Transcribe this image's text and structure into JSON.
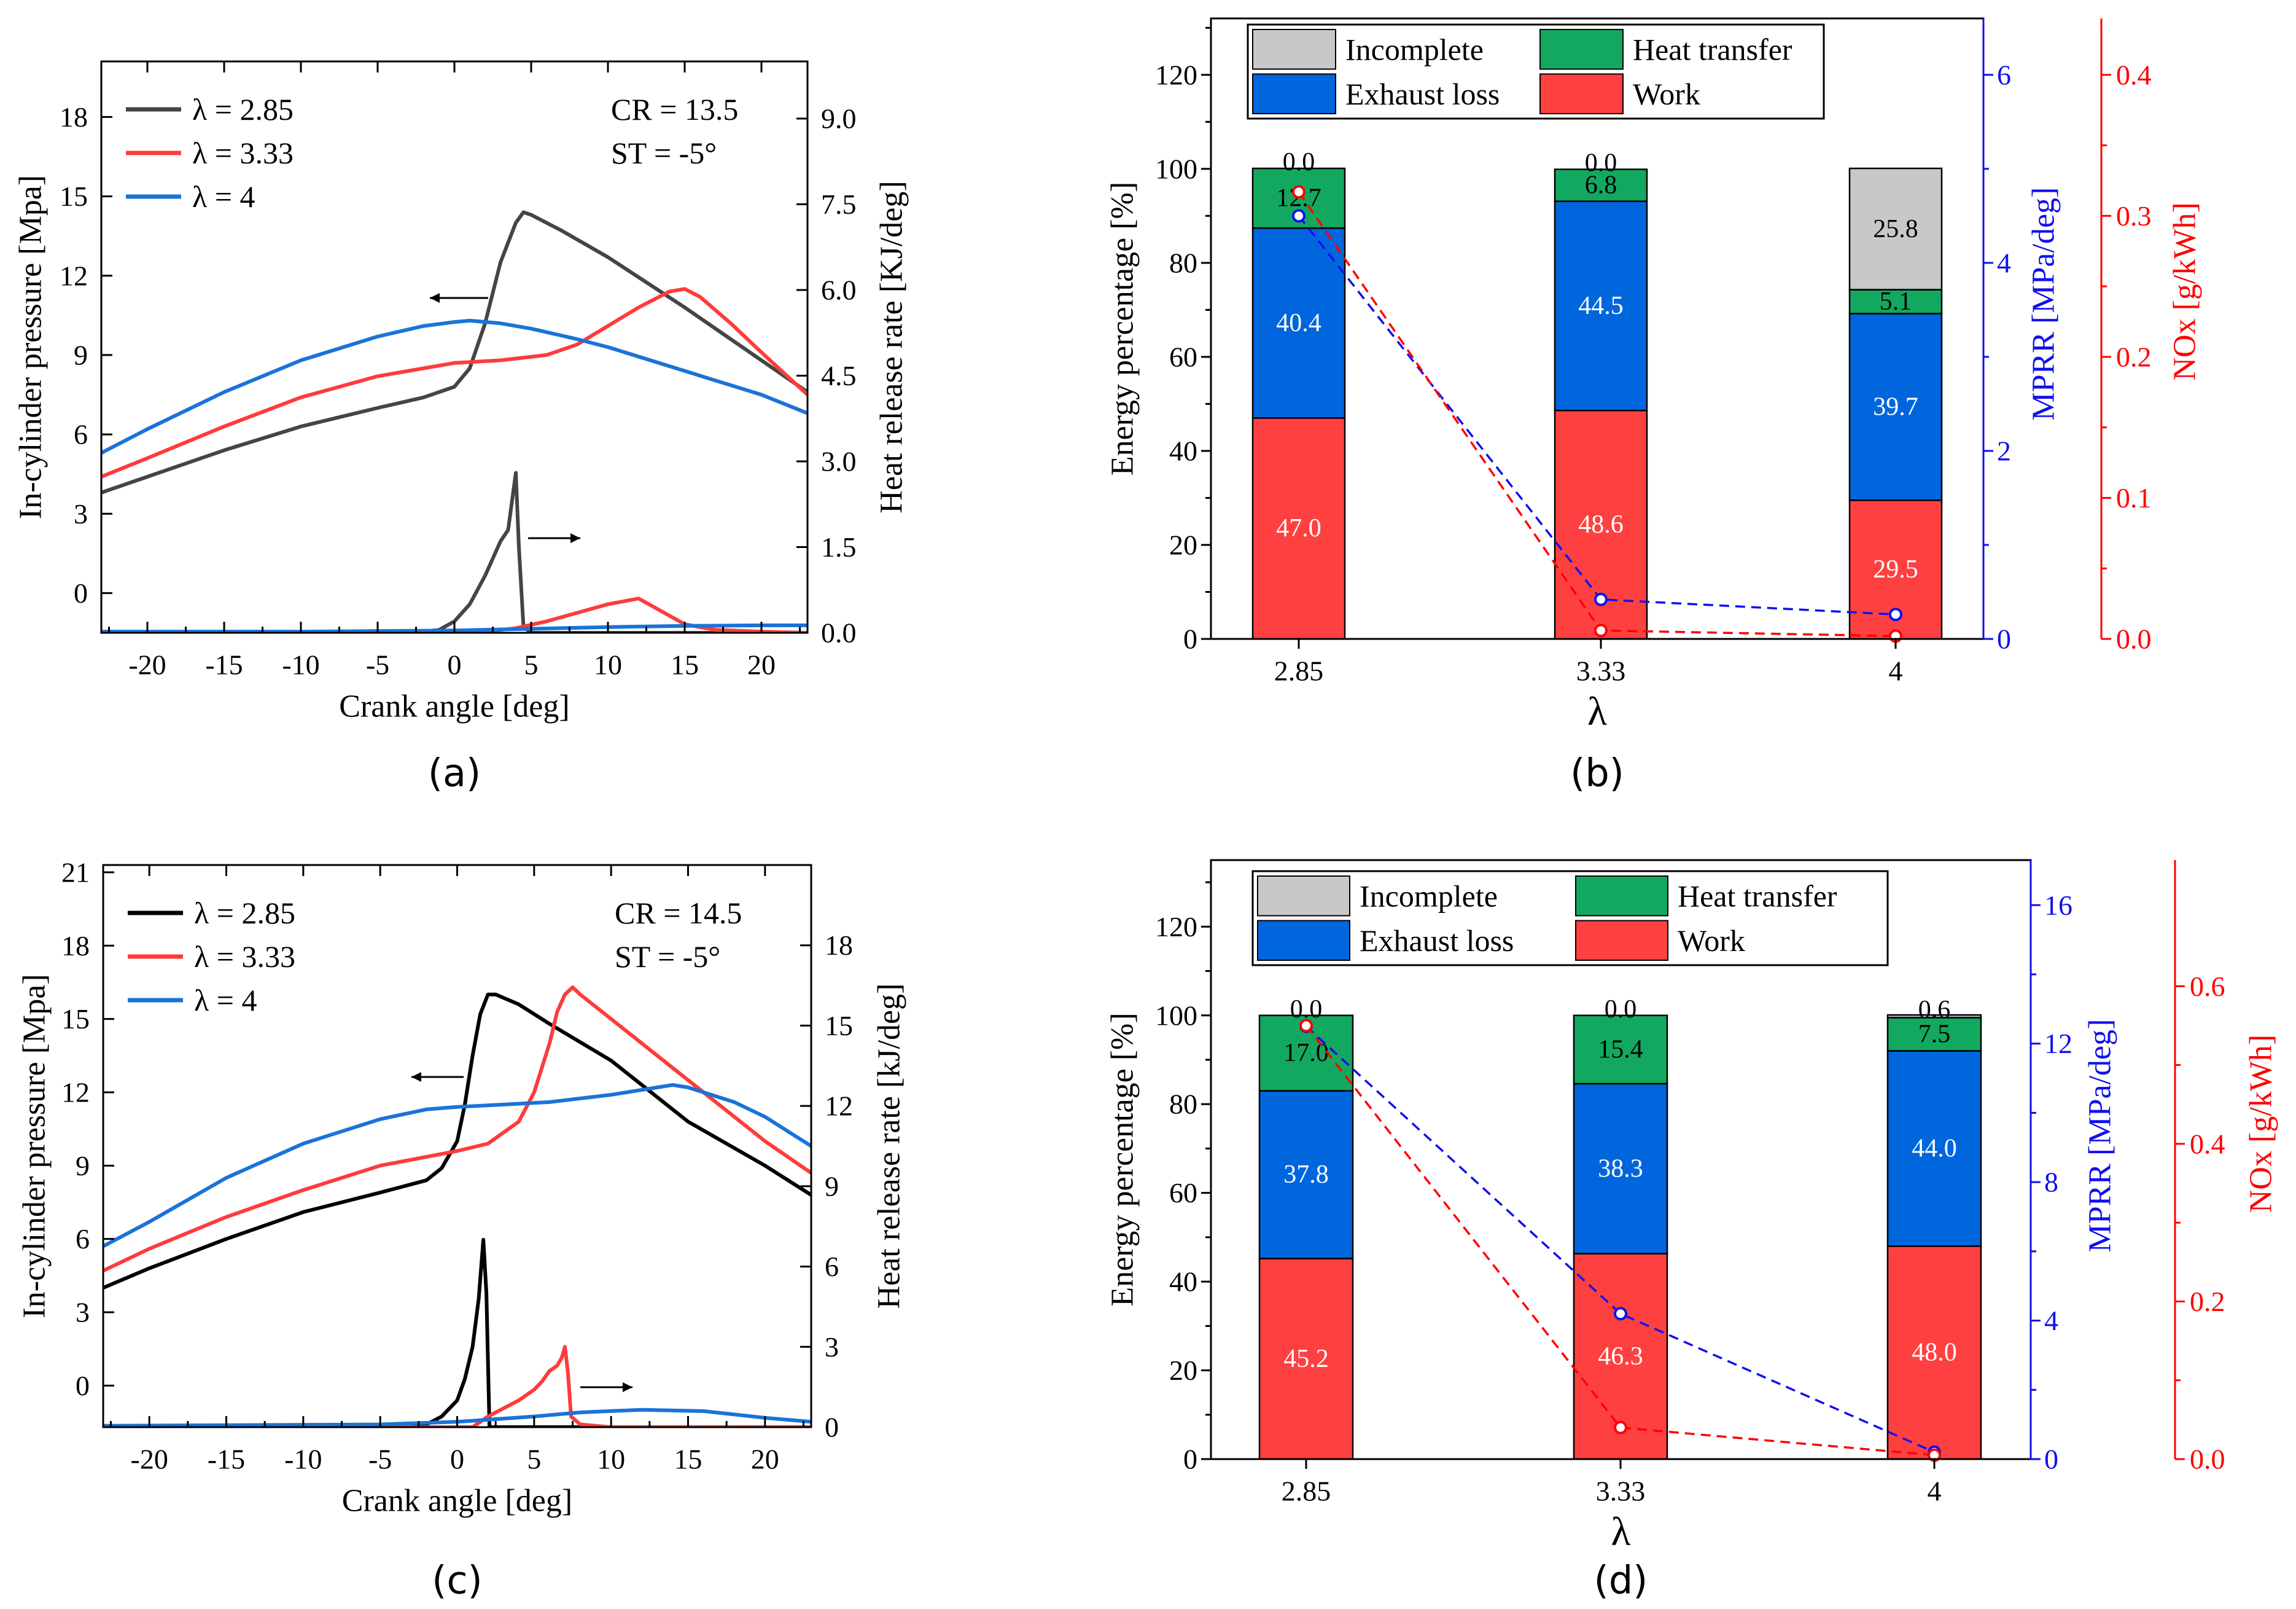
{
  "colors": {
    "dark": "#454545",
    "black": "#000000",
    "red": "#ff3b3b",
    "blue": "#1a73d9",
    "bar_red": "#ff4040",
    "bar_blue": "#0066dd",
    "bar_green": "#13a85f",
    "bar_gray": "#c8c8c8",
    "axis_blue": "#1010ee",
    "axis_red": "#ff0000"
  },
  "chart_data": [
    {
      "panel": "(a)",
      "type": "line",
      "xlabel": "Crank angle [deg]",
      "ylabel": "In-cylinder pressure [Mpa]",
      "y2label": "Heat release rate [KJ/deg]",
      "xlim": [
        -23,
        23
      ],
      "ylim": [
        -1.5,
        20.1
      ],
      "y2lim": [
        0,
        10.0
      ],
      "xticks": [
        "-20",
        "-15",
        "-10",
        "-5",
        "0",
        "5",
        "10",
        "15",
        "20"
      ],
      "xtick_values": [
        -20,
        -15,
        -10,
        -5,
        0,
        5,
        10,
        15,
        20
      ],
      "yticks": [
        "0",
        "3",
        "6",
        "9",
        "12",
        "15",
        "18"
      ],
      "ytick_values": [
        0,
        3,
        6,
        9,
        12,
        15,
        18
      ],
      "y2ticks": [
        "0.0",
        "1.5",
        "3.0",
        "4.5",
        "6.0",
        "7.5",
        "9.0"
      ],
      "y2tick_values": [
        0,
        1.5,
        3.0,
        4.5,
        6.0,
        7.5,
        9.0
      ],
      "annotations": [
        "CR = 13.5",
        "ST = -5°"
      ],
      "legend": [
        "λ = 2.85",
        "λ = 3.33",
        "λ = 4"
      ],
      "series": [
        {
          "name": "λ = 2.85 pressure",
          "axis": "y",
          "color_key": "dark",
          "x": [
            -23,
            -20,
            -15,
            -10,
            -5,
            -2,
            0,
            1,
            2,
            3,
            4,
            4.5,
            5,
            7,
            10,
            15,
            20,
            23
          ],
          "y": [
            3.8,
            4.4,
            5.4,
            6.3,
            7.0,
            7.4,
            7.8,
            8.5,
            10.2,
            12.5,
            14.0,
            14.4,
            14.3,
            13.7,
            12.7,
            10.8,
            8.8,
            7.6
          ]
        },
        {
          "name": "λ = 3.33 pressure",
          "axis": "y",
          "color_key": "red",
          "x": [
            -23,
            -20,
            -15,
            -10,
            -5,
            0,
            3,
            6,
            8,
            10,
            12,
            14,
            15,
            16,
            18,
            20,
            23
          ],
          "y": [
            4.4,
            5.1,
            6.3,
            7.4,
            8.2,
            8.7,
            8.8,
            9.0,
            9.4,
            10.1,
            10.8,
            11.4,
            11.5,
            11.2,
            10.2,
            9.1,
            7.5
          ]
        },
        {
          "name": "λ = 4 pressure",
          "axis": "y",
          "color_key": "blue",
          "x": [
            -23,
            -20,
            -15,
            -10,
            -5,
            -2,
            0,
            1,
            3,
            5,
            8,
            10,
            15,
            20,
            23
          ],
          "y": [
            5.3,
            6.2,
            7.6,
            8.8,
            9.7,
            10.1,
            10.25,
            10.3,
            10.2,
            10.0,
            9.6,
            9.3,
            8.4,
            7.5,
            6.8
          ]
        },
        {
          "name": "λ = 2.85 HRR",
          "axis": "y2",
          "color_key": "dark",
          "x": [
            -23,
            -3,
            -1,
            0,
            1,
            2,
            3,
            3.5,
            4,
            4.2,
            4.5,
            5,
            23
          ],
          "y": [
            0,
            0,
            0.05,
            0.2,
            0.5,
            1.0,
            1.6,
            1.8,
            2.8,
            1.5,
            0.1,
            0,
            0
          ]
        },
        {
          "name": "λ = 3.33 HRR",
          "axis": "y2",
          "color_key": "red",
          "x": [
            -23,
            0,
            2,
            4,
            6,
            8,
            10,
            11,
            12,
            13,
            14,
            15,
            17,
            20,
            23
          ],
          "y": [
            0,
            0,
            0.02,
            0.08,
            0.2,
            0.35,
            0.5,
            0.55,
            0.6,
            0.45,
            0.3,
            0.15,
            0.05,
            0.02,
            0
          ]
        },
        {
          "name": "λ = 4 HRR",
          "axis": "y2",
          "color_key": "blue",
          "x": [
            -23,
            -10,
            0,
            5,
            10,
            15,
            20,
            23
          ],
          "y": [
            0.02,
            0.02,
            0.04,
            0.07,
            0.1,
            0.12,
            0.13,
            0.13
          ]
        }
      ]
    },
    {
      "panel": "(b)",
      "type": "bar",
      "xlabel": "λ",
      "ylabel": "Energy percentage [%]",
      "y2label": "MPRR [MPa/deg]",
      "y3label": "NOx [g/kWh]",
      "categories": [
        "2.85",
        "3.33",
        "4"
      ],
      "ylim": [
        0,
        132
      ],
      "yticks": [
        "0",
        "20",
        "40",
        "60",
        "80",
        "100",
        "120"
      ],
      "ytick_values": [
        0,
        20,
        40,
        60,
        80,
        100,
        120
      ],
      "y2lim": [
        0,
        6.6
      ],
      "y2ticks": [
        "0",
        "2",
        "4",
        "6"
      ],
      "y2tick_values": [
        0,
        2,
        4,
        6
      ],
      "y3lim": [
        0,
        0.44
      ],
      "y3ticks": [
        "0.0",
        "0.1",
        "0.2",
        "0.3",
        "0.4"
      ],
      "y3tick_values": [
        0,
        0.1,
        0.2,
        0.3,
        0.4
      ],
      "legend": [
        "Incomplete",
        "Heat transfer",
        "Exhaust loss",
        "Work"
      ],
      "stacks": [
        {
          "name": "Work",
          "color_key": "bar_red",
          "values": [
            47.0,
            48.6,
            29.5
          ],
          "labels": [
            "47.0",
            "48.6",
            "29.5"
          ],
          "label_color": "#ffffff"
        },
        {
          "name": "Exhaust loss",
          "color_key": "bar_blue",
          "values": [
            40.4,
            44.5,
            39.7
          ],
          "labels": [
            "40.4",
            "44.5",
            "39.7"
          ],
          "label_color": "#ffffff"
        },
        {
          "name": "Heat transfer",
          "color_key": "bar_green",
          "values": [
            12.7,
            6.8,
            5.1
          ],
          "labels": [
            "12.7",
            "6.8",
            "5.1"
          ],
          "label_color": "#000000"
        },
        {
          "name": "Incomplete",
          "color_key": "bar_gray",
          "values": [
            0.0,
            0.0,
            25.8
          ],
          "labels": [
            "0.0",
            "0.0",
            "25.8"
          ],
          "label_color": "#000000"
        }
      ],
      "lines": [
        {
          "name": "MPRR",
          "axis": "y2",
          "color_key": "axis_blue",
          "values": [
            4.5,
            0.42,
            0.26
          ]
        },
        {
          "name": "NOx",
          "axis": "y3",
          "color_key": "axis_red",
          "values": [
            0.317,
            0.006,
            0.002
          ]
        }
      ]
    },
    {
      "panel": "(c)",
      "type": "line",
      "xlabel": "Crank angle [deg]",
      "ylabel": "In-cylinder pressure [Mpa]",
      "y2label": "Heat release rate [kJ/deg]",
      "xlim": [
        -23,
        23
      ],
      "ylim": [
        -1.7,
        21.3
      ],
      "y2lim": [
        0,
        21.0
      ],
      "xticks": [
        "-20",
        "-15",
        "-10",
        "-5",
        "0",
        "5",
        "10",
        "15",
        "20"
      ],
      "xtick_values": [
        -20,
        -15,
        -10,
        -5,
        0,
        5,
        10,
        15,
        20
      ],
      "yticks": [
        "0",
        "3",
        "6",
        "9",
        "12",
        "15",
        "18",
        "21"
      ],
      "ytick_values": [
        0,
        3,
        6,
        9,
        12,
        15,
        18,
        21
      ],
      "y2ticks": [
        "0",
        "3",
        "6",
        "9",
        "12",
        "15",
        "18"
      ],
      "y2tick_values": [
        0,
        3,
        6,
        9,
        12,
        15,
        18
      ],
      "annotations": [
        "CR = 14.5",
        "ST = -5°"
      ],
      "legend": [
        "λ = 2.85",
        "λ = 3.33",
        "λ = 4"
      ],
      "series": [
        {
          "name": "λ = 2.85 pressure",
          "axis": "y",
          "color_key": "black",
          "x": [
            -23,
            -20,
            -15,
            -10,
            -5,
            -2,
            -1,
            0,
            0.5,
            1,
            1.5,
            2,
            2.5,
            4,
            6,
            10,
            15,
            20,
            23
          ],
          "y": [
            4.0,
            4.8,
            6.0,
            7.1,
            7.9,
            8.4,
            8.9,
            10.0,
            11.5,
            13.5,
            15.2,
            16.0,
            16.0,
            15.6,
            14.8,
            13.3,
            10.8,
            9.0,
            7.8
          ]
        },
        {
          "name": "λ = 3.33 pressure",
          "axis": "y",
          "color_key": "red",
          "x": [
            -23,
            -20,
            -15,
            -10,
            -5,
            0,
            2,
            4,
            5,
            6,
            6.5,
            7,
            7.5,
            8,
            10,
            15,
            20,
            23
          ],
          "y": [
            4.7,
            5.6,
            6.9,
            8.0,
            9.0,
            9.6,
            9.9,
            10.8,
            12.0,
            14.0,
            15.3,
            16.0,
            16.3,
            16.0,
            15.0,
            12.5,
            10.0,
            8.7
          ]
        },
        {
          "name": "λ = 4 pressure",
          "axis": "y",
          "color_key": "blue",
          "x": [
            -23,
            -20,
            -15,
            -10,
            -5,
            -2,
            0,
            3,
            6,
            10,
            13,
            14,
            15,
            18,
            20,
            23
          ],
          "y": [
            5.7,
            6.7,
            8.5,
            9.9,
            10.9,
            11.3,
            11.4,
            11.5,
            11.6,
            11.9,
            12.2,
            12.3,
            12.2,
            11.6,
            11.0,
            9.8
          ]
        },
        {
          "name": "λ = 2.85 HRR",
          "axis": "y2",
          "color_key": "black",
          "x": [
            -23,
            -3,
            -2,
            -1,
            0,
            0.5,
            1,
            1.4,
            1.7,
            1.9,
            2.1,
            23
          ],
          "y": [
            0,
            0,
            0.1,
            0.4,
            1.0,
            1.8,
            3.0,
            4.8,
            7.0,
            5.0,
            0,
            0
          ]
        },
        {
          "name": "λ = 3.33 HRR",
          "axis": "y2",
          "color_key": "red",
          "x": [
            -23,
            1,
            2,
            3,
            4,
            5,
            5.5,
            6,
            6.5,
            6.8,
            7,
            7.2,
            7.4,
            8,
            10,
            23
          ],
          "y": [
            0,
            0,
            0.4,
            0.7,
            1.0,
            1.4,
            1.7,
            2.1,
            2.3,
            2.6,
            3.0,
            2.0,
            0.4,
            0.1,
            0,
            0
          ]
        },
        {
          "name": "λ = 4 HRR",
          "axis": "y2",
          "color_key": "blue",
          "x": [
            -23,
            -5,
            0,
            5,
            8,
            12,
            16,
            20,
            23
          ],
          "y": [
            0.05,
            0.1,
            0.2,
            0.4,
            0.55,
            0.65,
            0.6,
            0.35,
            0.2
          ]
        }
      ]
    },
    {
      "panel": "(d)",
      "type": "bar",
      "xlabel": "λ",
      "ylabel": "Energy percentage [%]",
      "y2label": "MPRR [MPa/deg]",
      "y3label": "NOx [g/kWh]",
      "categories": [
        "2.85",
        "3.33",
        "4"
      ],
      "ylim": [
        0,
        135
      ],
      "yticks": [
        "0",
        "20",
        "40",
        "60",
        "80",
        "100",
        "120"
      ],
      "ytick_values": [
        0,
        20,
        40,
        60,
        80,
        100,
        120
      ],
      "y2lim": [
        0,
        17.3
      ],
      "y2ticks": [
        "0",
        "4",
        "8",
        "12",
        "16"
      ],
      "y2tick_values": [
        0,
        4,
        8,
        12,
        16
      ],
      "y3lim": [
        0,
        0.76
      ],
      "y3ticks": [
        "0.0",
        "0.2",
        "0.4",
        "0.6"
      ],
      "y3tick_values": [
        0,
        0.2,
        0.4,
        0.6
      ],
      "legend": [
        "Incomplete",
        "Heat transfer",
        "Exhaust loss",
        "Work"
      ],
      "stacks": [
        {
          "name": "Work",
          "color_key": "bar_red",
          "values": [
            45.2,
            46.3,
            48.0
          ],
          "labels": [
            "45.2",
            "46.3",
            "48.0"
          ],
          "label_color": "#ffffff"
        },
        {
          "name": "Exhaust loss",
          "color_key": "bar_blue",
          "values": [
            37.8,
            38.3,
            44.0
          ],
          "labels": [
            "37.8",
            "38.3",
            "44.0"
          ],
          "label_color": "#ffffff"
        },
        {
          "name": "Heat transfer",
          "color_key": "bar_green",
          "values": [
            17.0,
            15.4,
            7.5
          ],
          "labels": [
            "17.0",
            "15.4",
            "7.5"
          ],
          "label_color": "#000000"
        },
        {
          "name": "Incomplete",
          "color_key": "bar_gray",
          "values": [
            0.0,
            0.0,
            0.6
          ],
          "labels": [
            "0.0",
            "0.0",
            "0.6"
          ],
          "label_color": "#000000"
        }
      ],
      "lines": [
        {
          "name": "MPRR",
          "axis": "y2",
          "color_key": "axis_blue",
          "values": [
            12.5,
            4.2,
            0.2
          ]
        },
        {
          "name": "NOx",
          "axis": "y3",
          "color_key": "axis_red",
          "values": [
            0.55,
            0.04,
            0.005
          ]
        }
      ]
    }
  ]
}
